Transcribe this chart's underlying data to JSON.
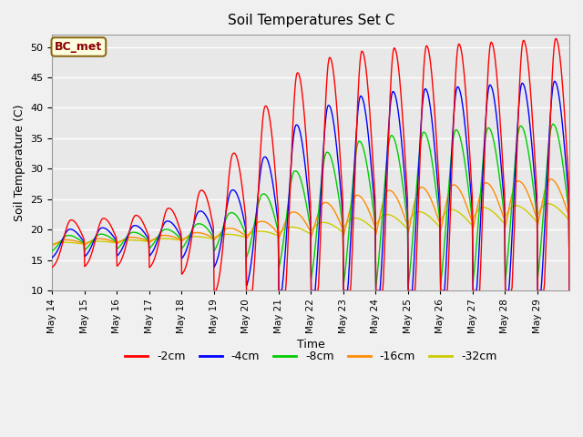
{
  "title": "Soil Temperatures Set C",
  "xlabel": "Time",
  "ylabel": "Soil Temperature (C)",
  "ylim": [
    10,
    52
  ],
  "yticks": [
    10,
    15,
    20,
    25,
    30,
    35,
    40,
    45,
    50
  ],
  "annotation_text": "BC_met",
  "annotation_color": "#8B0000",
  "annotation_bg": "#FFFFE0",
  "annotation_edge": "#8B6914",
  "series_colors": [
    "#FF0000",
    "#0000FF",
    "#00CC00",
    "#FF8C00",
    "#CCCC00"
  ],
  "series_labels": [
    "-2cm",
    "-4cm",
    "-8cm",
    "-16cm",
    "-32cm"
  ],
  "bg_color": "#E8E8E8",
  "fig_bg_color": "#F0F0F0",
  "grid_color": "#FFFFFF",
  "n_days": 16,
  "start_day": 14,
  "figsize": [
    6.4,
    4.8
  ],
  "dpi": 100
}
